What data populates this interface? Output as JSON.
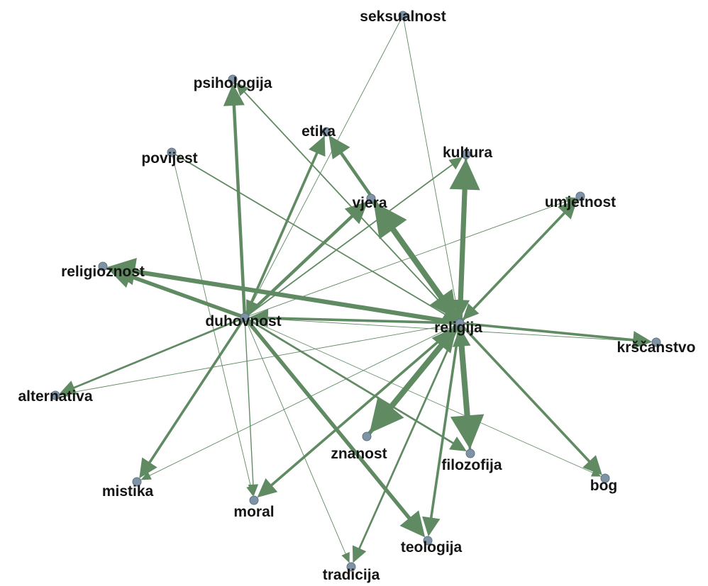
{
  "colors": {
    "edge": "#5f8a62",
    "node": "#7f93a6",
    "label": "#141414",
    "background": "#ffffff"
  },
  "nodes": [
    {
      "id": "seksualnost",
      "label": "seksualnost"
    },
    {
      "id": "psihologija",
      "label": "psihologija"
    },
    {
      "id": "etika",
      "label": "etika"
    },
    {
      "id": "kultura",
      "label": "kultura"
    },
    {
      "id": "povijest",
      "label": "povijest"
    },
    {
      "id": "vjera",
      "label": "vjera"
    },
    {
      "id": "umjetnost",
      "label": "umjetnost"
    },
    {
      "id": "religioznost",
      "label": "religioznost"
    },
    {
      "id": "duhovnost",
      "label": "duhovnost"
    },
    {
      "id": "religija",
      "label": "religija"
    },
    {
      "id": "krscanstvo",
      "label": "krščanstvo"
    },
    {
      "id": "alternativa",
      "label": "alternativa"
    },
    {
      "id": "znanost",
      "label": "znanost"
    },
    {
      "id": "filozofija",
      "label": "filozofija"
    },
    {
      "id": "bog",
      "label": "bog"
    },
    {
      "id": "mistika",
      "label": "mistika"
    },
    {
      "id": "moral",
      "label": "moral"
    },
    {
      "id": "teologija",
      "label": "teologija"
    },
    {
      "id": "tradicija",
      "label": "tradicija"
    }
  ],
  "edges": [
    {
      "source": "religija",
      "target": "vjera",
      "weight": 9
    },
    {
      "source": "vjera",
      "target": "religija",
      "weight": 7
    },
    {
      "source": "religija",
      "target": "kultura",
      "weight": 8
    },
    {
      "source": "kultura",
      "target": "religija",
      "weight": 4
    },
    {
      "source": "religija",
      "target": "znanost",
      "weight": 9
    },
    {
      "source": "znanost",
      "target": "religija",
      "weight": 6
    },
    {
      "source": "religija",
      "target": "filozofija",
      "weight": 9
    },
    {
      "source": "filozofija",
      "target": "religija",
      "weight": 4
    },
    {
      "source": "religija",
      "target": "religioznost",
      "weight": 7
    },
    {
      "source": "duhovnost",
      "target": "religioznost",
      "weight": 6
    },
    {
      "source": "duhovnost",
      "target": "teologija",
      "weight": 6
    },
    {
      "source": "duhovnost",
      "target": "psihologija",
      "weight": 5
    },
    {
      "source": "duhovnost",
      "target": "etika",
      "weight": 4
    },
    {
      "source": "religija",
      "target": "etika",
      "weight": 5
    },
    {
      "source": "duhovnost",
      "target": "vjera",
      "weight": 5
    },
    {
      "source": "religija",
      "target": "duhovnost",
      "weight": 4
    },
    {
      "source": "religija",
      "target": "moral",
      "weight": 4
    },
    {
      "source": "religija",
      "target": "teologija",
      "weight": 4
    },
    {
      "source": "religija",
      "target": "bog",
      "weight": 4
    },
    {
      "source": "religija",
      "target": "krscanstvo",
      "weight": 4
    },
    {
      "source": "religija",
      "target": "umjetnost",
      "weight": 4
    },
    {
      "source": "umjetnost",
      "target": "religija",
      "weight": 3
    },
    {
      "source": "religija",
      "target": "tradicija",
      "weight": 3
    },
    {
      "source": "duhovnost",
      "target": "mistika",
      "weight": 4
    },
    {
      "source": "duhovnost",
      "target": "alternativa",
      "weight": 3
    },
    {
      "source": "duhovnost",
      "target": "filozofija",
      "weight": 3
    },
    {
      "source": "duhovnost",
      "target": "kultura",
      "weight": 2
    },
    {
      "source": "duhovnost",
      "target": "moral",
      "weight": 1.5
    },
    {
      "source": "duhovnost",
      "target": "tradicija",
      "weight": 1
    },
    {
      "source": "duhovnost",
      "target": "umjetnost",
      "weight": 1
    },
    {
      "source": "duhovnost",
      "target": "krscanstvo",
      "weight": 1
    },
    {
      "source": "duhovnost",
      "target": "bog",
      "weight": 0.8
    },
    {
      "source": "povijest",
      "target": "religija",
      "weight": 2
    },
    {
      "source": "povijest",
      "target": "moral",
      "weight": 1
    },
    {
      "source": "seksualnost",
      "target": "religija",
      "weight": 1
    },
    {
      "source": "seksualnost",
      "target": "duhovnost",
      "weight": 1
    },
    {
      "source": "religija",
      "target": "psihologija",
      "weight": 2
    },
    {
      "source": "religija",
      "target": "alternativa",
      "weight": 1
    },
    {
      "source": "etika",
      "target": "duhovnost",
      "weight": 2
    },
    {
      "source": "religija",
      "target": "mistika",
      "weight": 1
    }
  ]
}
